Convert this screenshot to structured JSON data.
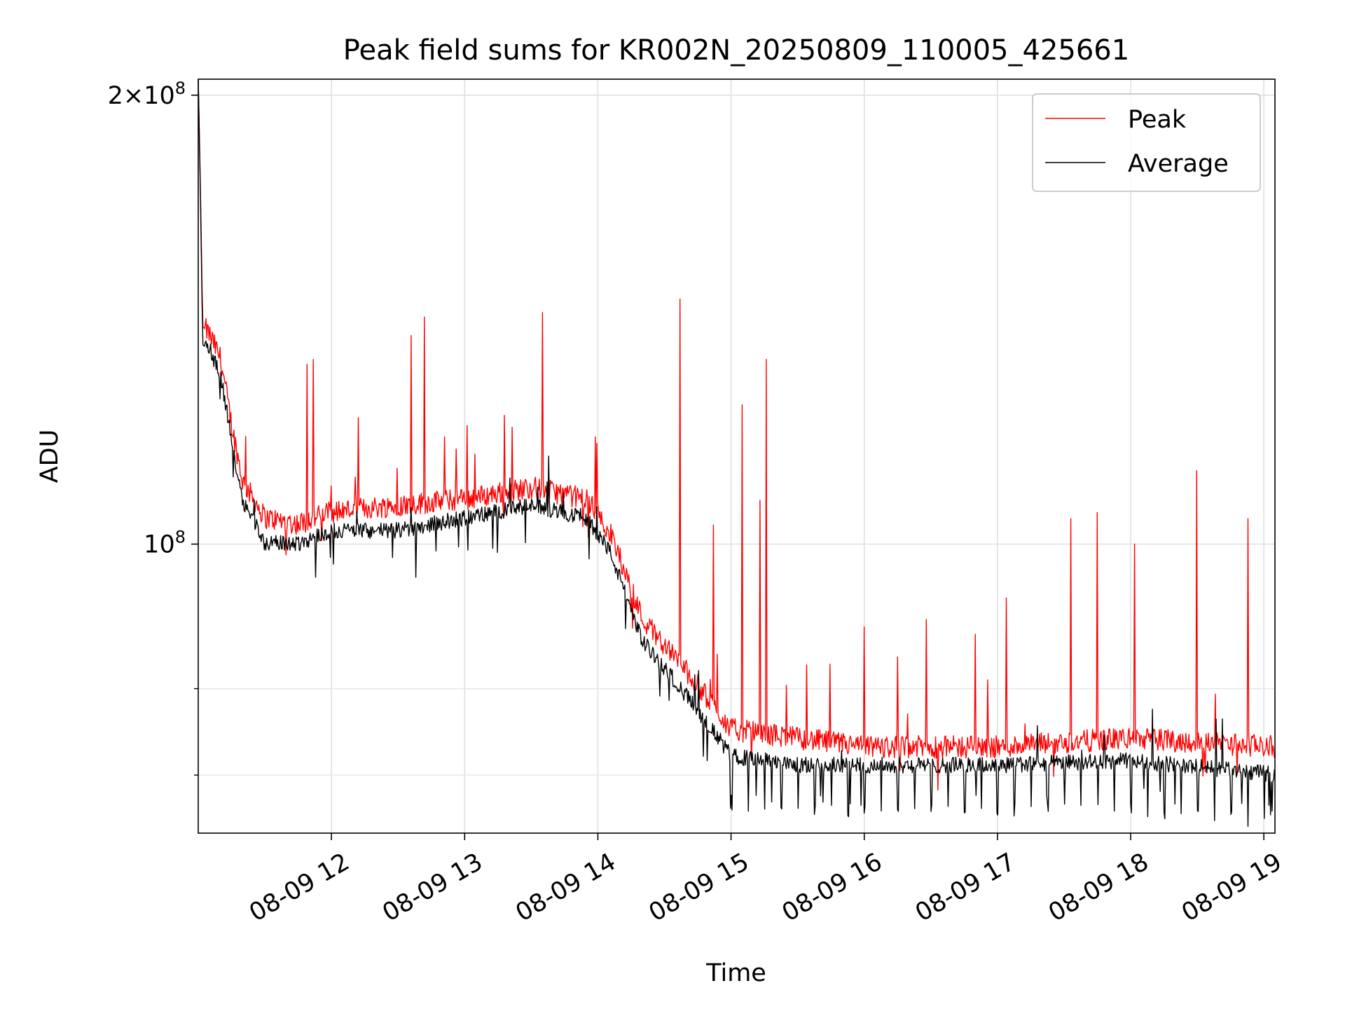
{
  "chart_data": {
    "type": "line",
    "title": "Peak field sums for KR002N_20250809_110005_425661",
    "xlabel": "Time",
    "ylabel": "ADU",
    "x_axis": {
      "type": "time",
      "range": [
        "2025-08-09 11:00",
        "2025-08-09 19:05"
      ],
      "ticks": [
        "2025-08-09 12:00",
        "2025-08-09 13:00",
        "2025-08-09 14:00",
        "2025-08-09 15:00",
        "2025-08-09 16:00",
        "2025-08-09 17:00",
        "2025-08-09 18:00",
        "2025-08-09 19:00"
      ],
      "tick_labels": [
        "08-09 12",
        "08-09 13",
        "08-09 14",
        "08-09 15",
        "08-09 16",
        "08-09 17",
        "08-09 18",
        "08-09 19"
      ]
    },
    "y_axis": {
      "scale": "log",
      "range": [
        64000000,
        205000000
      ],
      "major_ticks": [
        100000000,
        200000000
      ],
      "major_tick_labels": [
        "10^8",
        "2×10^8"
      ],
      "minor_ticks": [
        70000000,
        80000000
      ]
    },
    "grid": true,
    "legend": "top-right",
    "series": [
      {
        "name": "Peak",
        "color": "#ff0000",
        "times": [
          "11:00",
          "11:02",
          "11:05",
          "11:10",
          "11:15",
          "11:20",
          "11:30",
          "11:45",
          "12:00",
          "12:30",
          "13:00",
          "13:30",
          "13:55",
          "14:05",
          "14:20",
          "14:40",
          "15:00",
          "15:30",
          "16:00",
          "17:00",
          "18:00",
          "19:05"
        ],
        "values": [
          205000000,
          140000000,
          138000000,
          133000000,
          120000000,
          110000000,
          104000000,
          103000000,
          105000000,
          106000000,
          107000000,
          109000000,
          107000000,
          102000000,
          89000000,
          82000000,
          75000000,
          74000000,
          73000000,
          73000000,
          74000000,
          73000000
        ],
        "spikes": [
          {
            "time": "11:49",
            "value": 132000000
          },
          {
            "time": "11:52",
            "value": 133000000
          },
          {
            "time": "12:36",
            "value": 138000000
          },
          {
            "time": "12:42",
            "value": 142000000
          },
          {
            "time": "12:51",
            "value": 118000000
          },
          {
            "time": "13:18",
            "value": 122000000
          },
          {
            "time": "13:35",
            "value": 143000000
          },
          {
            "time": "13:59",
            "value": 118000000
          },
          {
            "time": "14:37",
            "value": 146000000
          },
          {
            "time": "14:52",
            "value": 103000000
          },
          {
            "time": "15:05",
            "value": 124000000
          },
          {
            "time": "15:13",
            "value": 107000000
          },
          {
            "time": "15:16",
            "value": 133000000
          },
          {
            "time": "16:00",
            "value": 88000000
          },
          {
            "time": "16:15",
            "value": 84000000
          },
          {
            "time": "16:28",
            "value": 89000000
          },
          {
            "time": "16:50",
            "value": 87000000
          },
          {
            "time": "17:04",
            "value": 92000000
          },
          {
            "time": "17:33",
            "value": 104000000
          },
          {
            "time": "17:45",
            "value": 105000000
          },
          {
            "time": "18:02",
            "value": 100000000
          },
          {
            "time": "18:30",
            "value": 112000000
          },
          {
            "time": "18:53",
            "value": 104000000
          }
        ]
      },
      {
        "name": "Average",
        "color": "#000000",
        "times": [
          "11:00",
          "11:02",
          "11:05",
          "11:10",
          "11:15",
          "11:20",
          "11:30",
          "11:45",
          "12:00",
          "12:30",
          "13:00",
          "13:30",
          "13:55",
          "14:05",
          "14:20",
          "14:40",
          "15:00",
          "15:30",
          "16:00",
          "17:00",
          "18:00",
          "19:05"
        ],
        "values": [
          205000000,
          136000000,
          135000000,
          130000000,
          117000000,
          107000000,
          100000000,
          100000000,
          102000000,
          102000000,
          104000000,
          106000000,
          104000000,
          99000000,
          86000000,
          79000000,
          72000000,
          71000000,
          71000000,
          71000000,
          71500000,
          70000000
        ],
        "dips": [
          {
            "time": "11:53",
            "value": 95000000
          },
          {
            "time": "12:38",
            "value": 95000000
          },
          {
            "time": "15:00",
            "value": 66500000
          },
          {
            "time": "16:00",
            "value": 66000000
          },
          {
            "time": "17:00",
            "value": 66000000
          },
          {
            "time": "18:00",
            "value": 67000000
          },
          {
            "time": "18:50",
            "value": 67000000
          }
        ]
      }
    ]
  }
}
